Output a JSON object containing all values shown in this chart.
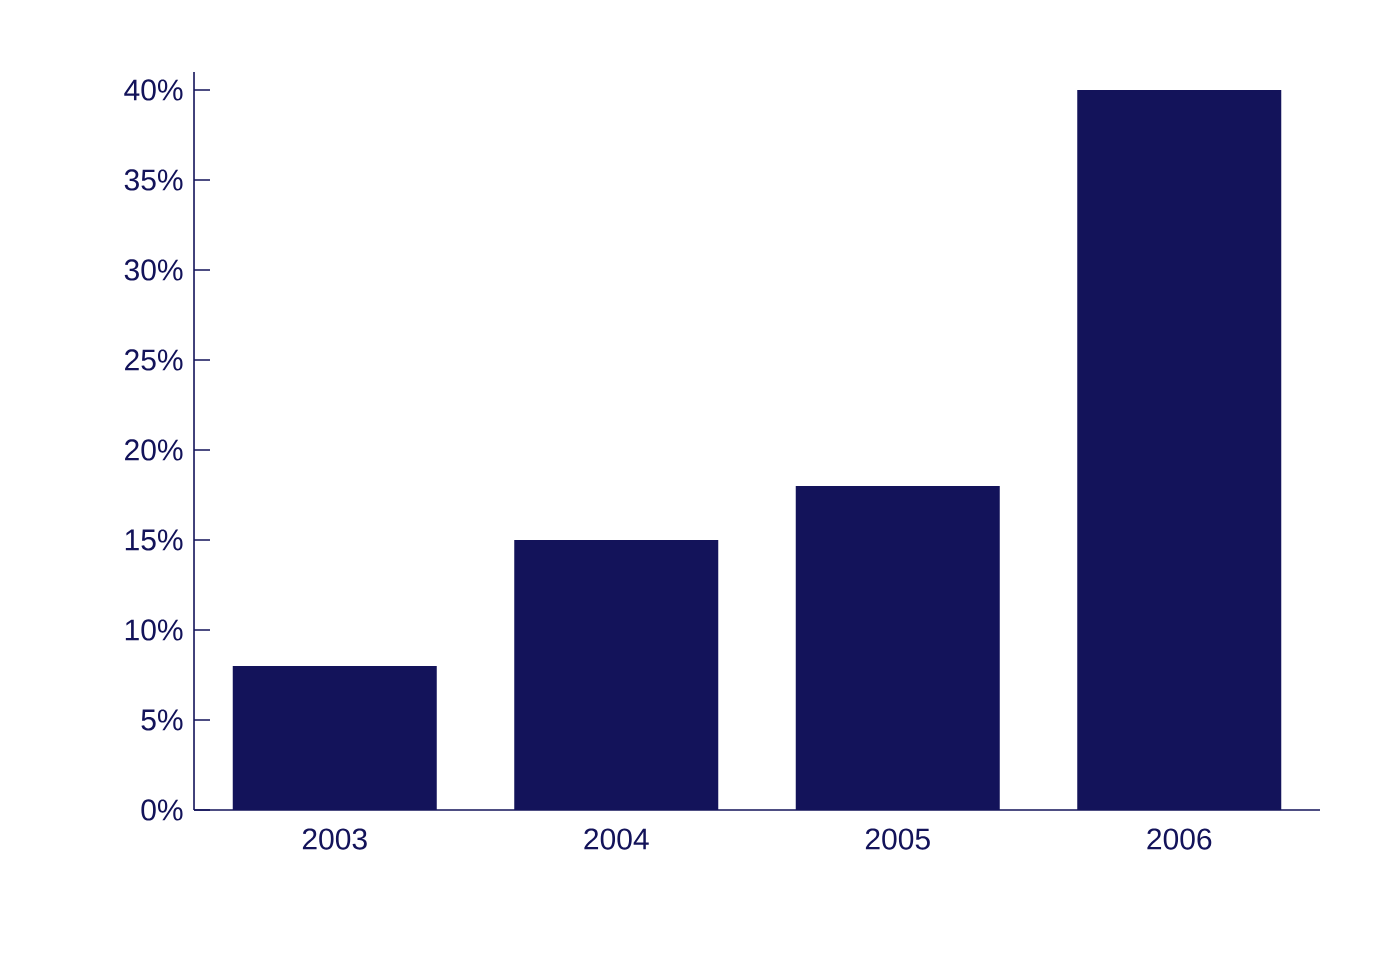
{
  "chart_data": {
    "type": "bar",
    "categories": [
      "2003",
      "2004",
      "2005",
      "2006"
    ],
    "values": [
      8,
      15,
      18,
      40
    ],
    "color": "#13135a",
    "ylim": [
      0,
      41
    ],
    "yticks": [
      {
        "value": 0,
        "label": "0%"
      },
      {
        "value": 5,
        "label": "5%"
      },
      {
        "value": 10,
        "label": "10%"
      },
      {
        "value": 15,
        "label": "15%"
      },
      {
        "value": 20,
        "label": "20%"
      },
      {
        "value": 25,
        "label": "25%"
      },
      {
        "value": 30,
        "label": "30%"
      },
      {
        "value": 35,
        "label": "35%"
      },
      {
        "value": 40,
        "label": "40%"
      }
    ],
    "grid": false
  }
}
